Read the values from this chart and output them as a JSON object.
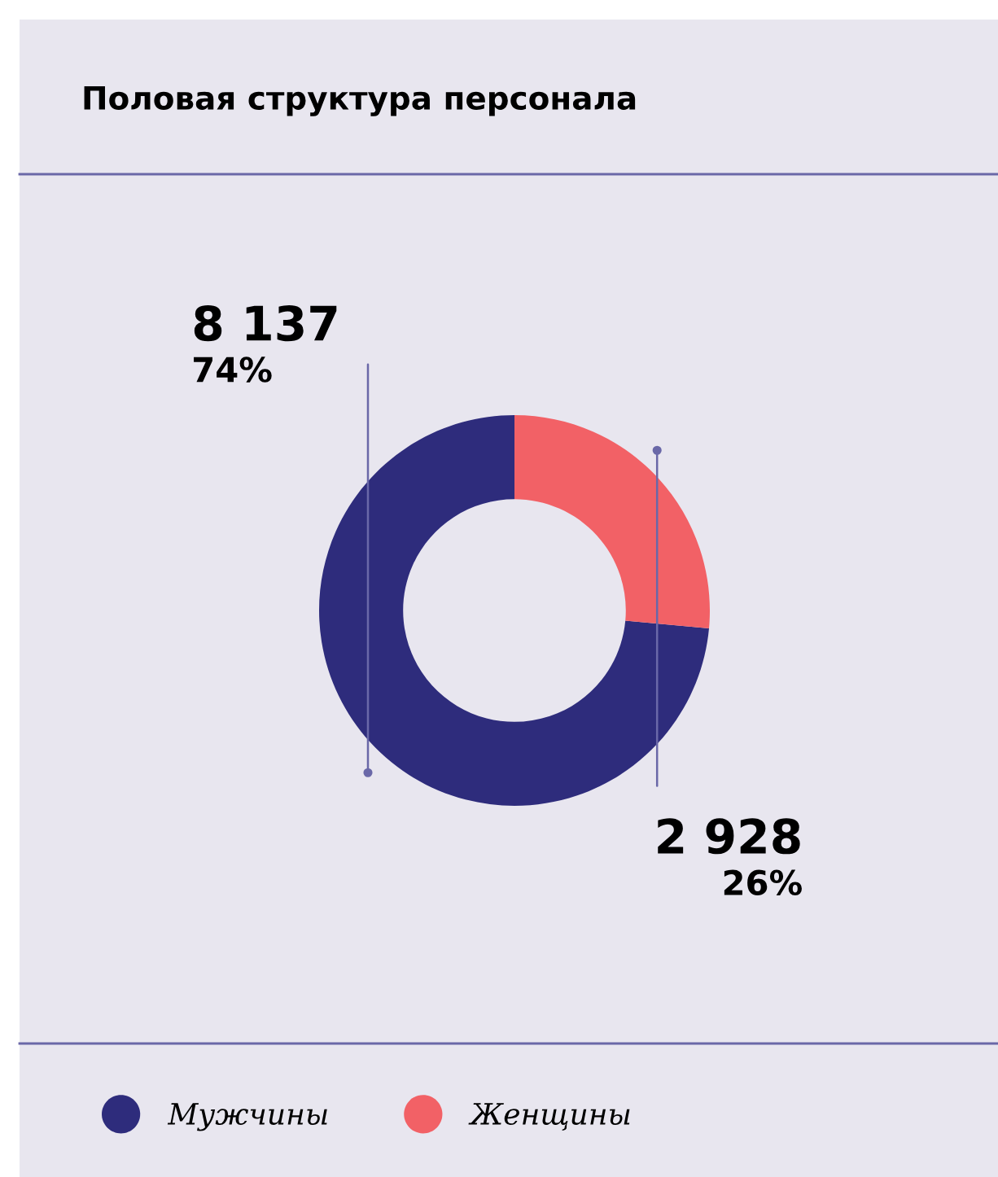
{
  "chart_data": {
    "type": "donut",
    "title": "Половая структура персонала",
    "categories": [
      "Мужчины",
      "Женщины"
    ],
    "values": [
      8137,
      2928
    ],
    "colors": [
      "#2e2c7c",
      "#f26166"
    ],
    "value_labels": [
      "8 137",
      "2 928"
    ],
    "annotations": [
      "74%",
      "26%"
    ],
    "legend": "bottom left"
  }
}
